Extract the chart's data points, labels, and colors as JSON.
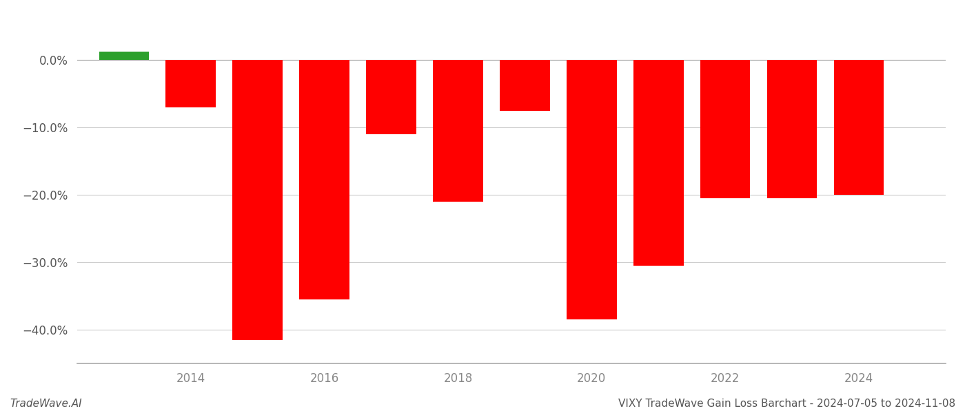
{
  "years": [
    2013,
    2014,
    2015,
    2016,
    2017,
    2018,
    2019,
    2020,
    2021,
    2022,
    2023,
    2024
  ],
  "values": [
    1.2,
    -7.0,
    -41.5,
    -35.5,
    -11.0,
    -21.0,
    -7.5,
    -38.5,
    -30.5,
    -20.5,
    -20.5,
    -20.0
  ],
  "colors": [
    "#2ca02c",
    "#ff0000",
    "#ff0000",
    "#ff0000",
    "#ff0000",
    "#ff0000",
    "#ff0000",
    "#ff0000",
    "#ff0000",
    "#ff0000",
    "#ff0000",
    "#ff0000"
  ],
  "footer_left": "TradeWave.AI",
  "footer_right": "VIXY TradeWave Gain Loss Barchart - 2024-07-05 to 2024-11-08",
  "ylim": [
    -45,
    4
  ],
  "ytick_values": [
    0.0,
    -10.0,
    -20.0,
    -30.0,
    -40.0
  ],
  "xlim_min": 2012.3,
  "xlim_max": 2025.3,
  "background_color": "#ffffff",
  "grid_color": "#cccccc",
  "bar_width": 0.75
}
